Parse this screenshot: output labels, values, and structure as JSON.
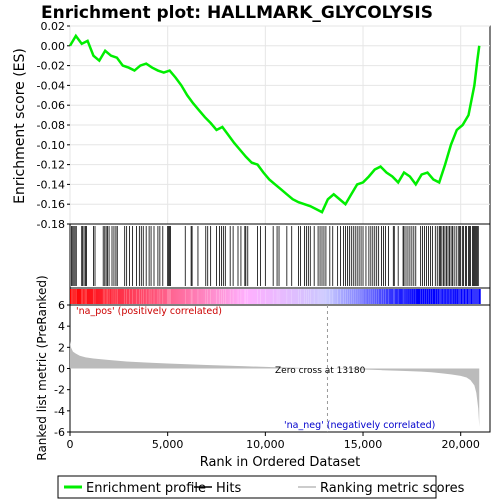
{
  "chart_data": [
    {
      "type": "line",
      "title": "Enrichment plot: HALLMARK_GLYCOLYSIS",
      "ylabel": "Enrichment score (ES)",
      "ylim": [
        -0.18,
        0.02
      ],
      "yticks": [
        "0.02",
        "0.00",
        "-0.02",
        "-0.04",
        "-0.06",
        "-0.08",
        "-0.10",
        "-0.12",
        "-0.14",
        "-0.16",
        "-0.18"
      ],
      "yticks_values": [
        0.02,
        0.0,
        -0.02,
        -0.04,
        -0.06,
        -0.08,
        -0.1,
        -0.12,
        -0.14,
        -0.16,
        -0.18
      ],
      "xlim": [
        0,
        21500
      ],
      "grid": true,
      "series": [
        {
          "name": "Enrichment profile",
          "color": "#00ee00",
          "x": [
            0,
            300,
            600,
            900,
            1200,
            1500,
            1800,
            2100,
            2400,
            2700,
            3000,
            3300,
            3600,
            3900,
            4200,
            4500,
            4800,
            5100,
            5400,
            5700,
            6000,
            6300,
            6600,
            6900,
            7200,
            7500,
            7800,
            8100,
            8400,
            8700,
            9000,
            9300,
            9600,
            9900,
            10200,
            10500,
            10800,
            11100,
            11400,
            11700,
            12000,
            12300,
            12600,
            12900,
            13200,
            13500,
            13800,
            14100,
            14400,
            14700,
            15000,
            15300,
            15600,
            15900,
            16200,
            16500,
            16800,
            17100,
            17400,
            17700,
            18000,
            18300,
            18600,
            18900,
            19200,
            19500,
            19800,
            20100,
            20400,
            20700,
            20850,
            20950
          ],
          "y": [
            0.0,
            0.01,
            0.002,
            0.005,
            -0.01,
            -0.015,
            -0.005,
            -0.01,
            -0.012,
            -0.02,
            -0.022,
            -0.025,
            -0.02,
            -0.018,
            -0.022,
            -0.025,
            -0.027,
            -0.025,
            -0.032,
            -0.04,
            -0.05,
            -0.058,
            -0.065,
            -0.072,
            -0.078,
            -0.085,
            -0.082,
            -0.09,
            -0.098,
            -0.105,
            -0.112,
            -0.118,
            -0.12,
            -0.128,
            -0.135,
            -0.14,
            -0.145,
            -0.15,
            -0.155,
            -0.158,
            -0.16,
            -0.162,
            -0.165,
            -0.168,
            -0.155,
            -0.15,
            -0.155,
            -0.16,
            -0.15,
            -0.14,
            -0.138,
            -0.132,
            -0.125,
            -0.122,
            -0.128,
            -0.132,
            -0.138,
            -0.128,
            -0.132,
            -0.14,
            -0.13,
            -0.128,
            -0.135,
            -0.138,
            -0.12,
            -0.1,
            -0.085,
            -0.08,
            -0.07,
            -0.04,
            -0.015,
            0.0
          ]
        }
      ]
    },
    {
      "type": "scatter",
      "description_series": "Hits",
      "hits": [
        80,
        140,
        200,
        260,
        320,
        600,
        650,
        720,
        790,
        850,
        1200,
        1280,
        1700,
        1780,
        1850,
        1920,
        2000,
        2150,
        2250,
        2350,
        2420,
        2800,
        2900,
        3050,
        3200,
        3400,
        3550,
        3650,
        3750,
        3900,
        4050,
        4150,
        4300,
        4500,
        4600,
        4750,
        5000,
        5050,
        5100,
        5150,
        5900,
        6200,
        6250,
        6550,
        6950,
        7050,
        7200,
        7500,
        7650,
        7750,
        7850,
        7950,
        8200,
        8350,
        8600,
        8750,
        8950,
        9000,
        9100,
        9600,
        9750,
        10000,
        10400,
        10600,
        10700,
        11100,
        11350,
        11700,
        11800,
        12000,
        12100,
        12200,
        12300,
        12500,
        12700,
        12800,
        12900,
        13000,
        13100,
        13300,
        13450,
        13700,
        13850,
        14000,
        14100,
        14200,
        14300,
        14400,
        14500,
        14600,
        14700,
        14800,
        14900,
        15000,
        15150,
        15300,
        15400,
        15500,
        15600,
        15700,
        15800,
        15950,
        16050,
        16150,
        16300,
        16550,
        16600,
        16800,
        17050,
        17100,
        17200,
        17300,
        17400,
        17500,
        17600,
        17700,
        17950,
        18050,
        18150,
        18250,
        18350,
        18450,
        18550,
        18700,
        18800,
        18900,
        18950,
        19000,
        19100,
        19150,
        19250,
        19300,
        19400,
        19450,
        19550,
        19600,
        19700,
        19800,
        19900,
        19950,
        20000,
        20100,
        20150,
        20250,
        20300,
        20400,
        20450,
        20500,
        20600,
        20650,
        20700,
        20750,
        20800,
        20850,
        20900
      ]
    },
    {
      "type": "area",
      "ylabel": "Ranked list metric (PreRanked)",
      "xlabel": "Rank in Ordered Dataset",
      "ylim": [
        -6,
        6
      ],
      "yticks": [
        "6",
        "4",
        "2",
        "0",
        "-2",
        "-4",
        "-6"
      ],
      "yticks_values": [
        6,
        4,
        2,
        0,
        -2,
        -4,
        -6
      ],
      "xticks": [
        "0",
        "5,000",
        "10,000",
        "15,000",
        "20,000"
      ],
      "xticks_values": [
        0,
        5000,
        10000,
        15000,
        20000
      ],
      "xlim": [
        0,
        21500
      ],
      "x": [
        0,
        50,
        150,
        300,
        500,
        800,
        1200,
        2000,
        3000,
        4000,
        5000,
        6000,
        7000,
        8000,
        9000,
        10000,
        11000,
        12000,
        13180,
        14000,
        15000,
        16000,
        17000,
        18000,
        18500,
        19000,
        19500,
        20000,
        20300,
        20500,
        20700,
        20800,
        20900,
        20950
      ],
      "y": [
        2.6,
        2.0,
        1.6,
        1.4,
        1.2,
        1.05,
        0.95,
        0.8,
        0.65,
        0.55,
        0.47,
        0.4,
        0.33,
        0.27,
        0.21,
        0.15,
        0.1,
        0.05,
        0.0,
        -0.05,
        -0.1,
        -0.16,
        -0.22,
        -0.3,
        -0.36,
        -0.45,
        -0.55,
        -0.7,
        -0.85,
        -1.1,
        -1.6,
        -2.3,
        -3.8,
        -5.5
      ],
      "color": "#bbbbbb",
      "annotations": {
        "zero_cross": "Zero cross at 13180",
        "pos_label": "'na_pos' (positively correlated)",
        "neg_label": "'na_neg' (negatively correlated)",
        "zero_cross_x": 13180
      }
    }
  ],
  "colorbar": {
    "pos_color": "#ff0000",
    "mid_pos_color": "#ffb0ff",
    "mid_neg_color": "#c8c8ff",
    "neg_color": "#0000ff",
    "transition_x": [
      0,
      9000,
      13180,
      17500,
      21000
    ]
  },
  "legend": {
    "items": [
      {
        "label": "Enrichment profile",
        "color": "#00ee00",
        "style": "line"
      },
      {
        "label": "Hits",
        "color": "#000000",
        "style": "line"
      },
      {
        "label": "Ranking metric scores",
        "color": "#bbbbbb",
        "style": "line"
      }
    ]
  }
}
